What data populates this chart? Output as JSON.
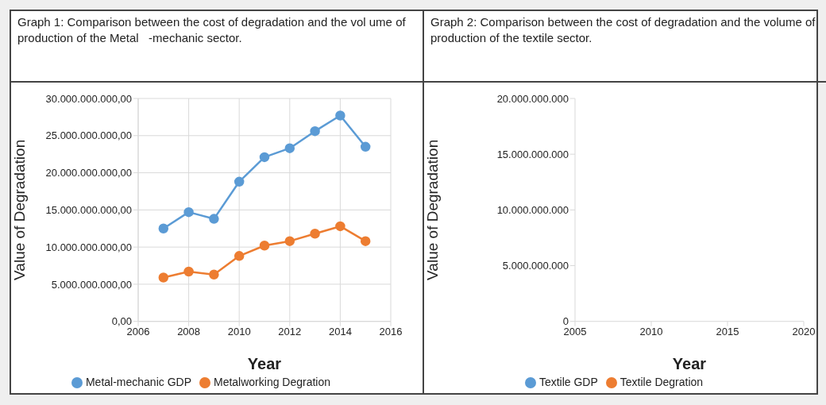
{
  "chart_data": [
    {
      "type": "line",
      "title": "Graph 1: Comparison between the cost of degradation and the vol ume of production of the Metal   -mechanic sector.",
      "xlabel": "Year",
      "ylabel": "Value of Degradation",
      "series": [
        {
          "name": "Metal-mechanic GDP",
          "color": "#5b9bd5",
          "x": [
            2007,
            2008,
            2009,
            2010,
            2011,
            2012,
            2013,
            2014,
            2015
          ],
          "values": [
            12500000000,
            14700000000,
            13800000000,
            18800000000,
            22100000000,
            23300000000,
            25600000000,
            27700000000,
            23500000000
          ]
        },
        {
          "name": "Metalworking Degration",
          "color": "#ed7d31",
          "x": [
            2007,
            2008,
            2009,
            2010,
            2011,
            2012,
            2013,
            2014,
            2015
          ],
          "values": [
            5900000000,
            6700000000,
            6300000000,
            8800000000,
            10200000000,
            10800000000,
            11800000000,
            12800000000,
            10800000000
          ]
        }
      ],
      "xlim": [
        2006,
        2016
      ],
      "xticks": [
        2006,
        2008,
        2010,
        2012,
        2014,
        2016
      ],
      "ylim": [
        0,
        30000000000
      ],
      "yticks": [
        {
          "value": 0,
          "label": "0,00"
        },
        {
          "value": 5000000000,
          "label": "5.000.000.000,00"
        },
        {
          "value": 10000000000,
          "label": "10.000.000.000,00"
        },
        {
          "value": 15000000000,
          "label": "15.000.000.000,00"
        },
        {
          "value": 20000000000,
          "label": "20.000.000.000,00"
        },
        {
          "value": 25000000000,
          "label": "25.000.000.000,00"
        },
        {
          "value": 30000000000,
          "label": "30.000.000.000,00"
        }
      ],
      "grid": true,
      "legend": "bottom",
      "marker": "circle"
    },
    {
      "type": "line",
      "title": "Graph 2: Comparison between the cost of degradation and the volume of production of the textile sector.",
      "xlabel": "Year",
      "ylabel": "Value of Degradation",
      "series": [
        {
          "name": "Textile GDP",
          "color": "#5b9bd5",
          "values": [
            null,
            null,
            null,
            null
          ]
        },
        {
          "name": "Textile Degration",
          "color": "#ed7d31",
          "values": [
            null,
            null,
            null,
            null
          ]
        }
      ],
      "categories": [
        "2005",
        "2010",
        "2015",
        "2020"
      ],
      "ylim": [
        0,
        20000000000
      ],
      "yticks": [
        0,
        {
          "value": 5000000000,
          "label": "5.000.000.000"
        },
        {
          "value": 10000000000,
          "label": "10.000.000.000"
        },
        {
          "value": 15000000000,
          "label": "15.000.000.000"
        },
        {
          "value": 20000000000,
          "label": "20.000.000.000"
        }
      ],
      "grid": false,
      "legend": "bottom",
      "marker": "circle"
    }
  ]
}
